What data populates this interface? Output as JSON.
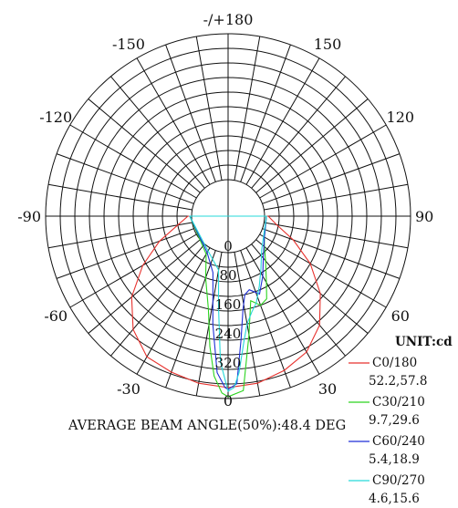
{
  "chart_data": {
    "type": "polar",
    "unit_label": "UNIT:cd",
    "radial_ticks": [
      "0",
      "80",
      "160",
      "240",
      "320"
    ],
    "radial_max": 400,
    "angle_labels": [
      {
        "angle": 180,
        "text": "-/+180"
      },
      {
        "angle": 150,
        "text": "150"
      },
      {
        "angle": 120,
        "text": "120"
      },
      {
        "angle": 90,
        "text": "90"
      },
      {
        "angle": 60,
        "text": "60"
      },
      {
        "angle": 30,
        "text": "30"
      },
      {
        "angle": 0,
        "text": "0"
      },
      {
        "angle": -30,
        "text": "-30"
      },
      {
        "angle": -60,
        "text": "-60"
      },
      {
        "angle": -90,
        "text": "-90"
      },
      {
        "angle": -120,
        "text": "-120"
      },
      {
        "angle": -150,
        "text": "-150"
      }
    ],
    "beam_angle_text": "AVERAGE BEAM ANGLE(50%):48.4 DEG",
    "series": [
      {
        "name": "C0/180",
        "beam": "52.2,57.8",
        "color": "#e8322e",
        "points": [
          [
            -90,
            10
          ],
          [
            -80,
            40
          ],
          [
            -70,
            100
          ],
          [
            -60,
            170
          ],
          [
            -50,
            245
          ],
          [
            -40,
            305
          ],
          [
            -30,
            345
          ],
          [
            -20,
            355
          ],
          [
            -10,
            365
          ],
          [
            0,
            370
          ],
          [
            10,
            365
          ],
          [
            20,
            350
          ],
          [
            30,
            330
          ],
          [
            40,
            290
          ],
          [
            50,
            230
          ],
          [
            60,
            160
          ],
          [
            70,
            90
          ],
          [
            80,
            35
          ],
          [
            90,
            10
          ]
        ]
      },
      {
        "name": "C30/210",
        "beam": "9.7,29.6",
        "color": "#2bd41f",
        "points": [
          [
            -90,
            5
          ],
          [
            -30,
            20
          ],
          [
            -20,
            80
          ],
          [
            -12,
            160
          ],
          [
            -8,
            260
          ],
          [
            -5,
            340
          ],
          [
            -2,
            385
          ],
          [
            0,
            395
          ],
          [
            5,
            380
          ],
          [
            10,
            230
          ],
          [
            15,
            140
          ],
          [
            20,
            160
          ],
          [
            25,
            150
          ],
          [
            30,
            110
          ],
          [
            40,
            60
          ],
          [
            50,
            30
          ],
          [
            60,
            15
          ],
          [
            90,
            5
          ]
        ]
      },
      {
        "name": "C60/240",
        "beam": "5.4,18.9",
        "color": "#1f2fd6",
        "points": [
          [
            -90,
            5
          ],
          [
            -30,
            15
          ],
          [
            -15,
            60
          ],
          [
            -8,
            200
          ],
          [
            -4,
            330
          ],
          [
            -1,
            370
          ],
          [
            0,
            375
          ],
          [
            3,
            360
          ],
          [
            6,
            240
          ],
          [
            9,
            160
          ],
          [
            12,
            120
          ],
          [
            16,
            110
          ],
          [
            22,
            130
          ],
          [
            30,
            90
          ],
          [
            40,
            50
          ],
          [
            60,
            15
          ],
          [
            90,
            5
          ]
        ]
      },
      {
        "name": "C90/270",
        "beam": "4.6,15.6",
        "color": "#26d9d9",
        "points": [
          [
            -90,
            5
          ],
          [
            -30,
            10
          ],
          [
            -10,
            50
          ],
          [
            -6,
            150
          ],
          [
            -3,
            300
          ],
          [
            0,
            380
          ],
          [
            2,
            370
          ],
          [
            4,
            330
          ],
          [
            7,
            250
          ],
          [
            10,
            200
          ],
          [
            14,
            170
          ],
          [
            18,
            150
          ],
          [
            24,
            110
          ],
          [
            32,
            70
          ],
          [
            45,
            30
          ],
          [
            90,
            5
          ]
        ]
      }
    ]
  }
}
